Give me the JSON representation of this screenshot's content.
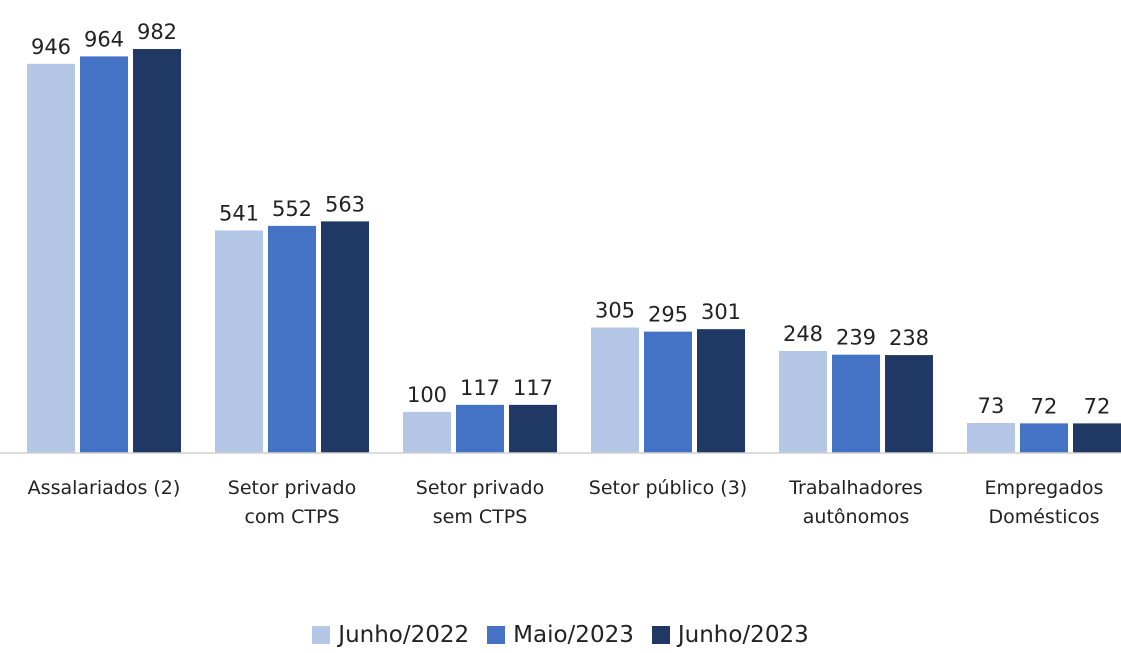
{
  "chart_data": {
    "type": "bar",
    "categories": [
      "Assalariados (2)",
      "Setor privado\ncom CTPS",
      "Setor privado\nsem CTPS",
      "Setor público (3)",
      "Trabalhadores\nautônomos",
      "Empregados\nDomésticos"
    ],
    "series": [
      {
        "name": "Junho/2022",
        "color": "#b4c7e7",
        "values": [
          946,
          541,
          100,
          305,
          248,
          73
        ]
      },
      {
        "name": "Maio/2023",
        "color": "#4472c4",
        "values": [
          964,
          552,
          117,
          295,
          239,
          72
        ]
      },
      {
        "name": "Junho/2023",
        "color": "#203864",
        "values": [
          982,
          563,
          117,
          301,
          238,
          72
        ]
      }
    ],
    "legend": "bottom"
  }
}
